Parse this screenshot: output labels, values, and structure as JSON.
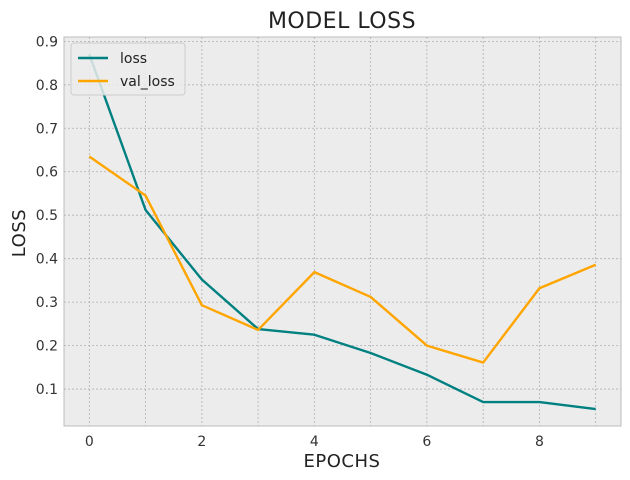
{
  "chart_data": {
    "type": "line",
    "title": "MODEL LOSS",
    "xlabel": "EPOCHS",
    "ylabel": "LOSS",
    "x": [
      0,
      1,
      2,
      3,
      4,
      5,
      6,
      7,
      8,
      9
    ],
    "xlim": [
      -0.45,
      9.45
    ],
    "ylim": [
      0.015,
      0.91
    ],
    "xticks": [
      0,
      2,
      4,
      6,
      8
    ],
    "yticks": [
      0.1,
      0.2,
      0.3,
      0.4,
      0.5,
      0.6,
      0.7,
      0.8,
      0.9
    ],
    "grid": true,
    "legend_position": "top-left",
    "series": [
      {
        "name": "loss",
        "color": "#008080",
        "values": [
          0.87,
          0.512,
          0.352,
          0.238,
          0.225,
          0.183,
          0.133,
          0.07,
          0.07,
          0.054
        ]
      },
      {
        "name": "val_loss",
        "color": "#FFA500",
        "values": [
          0.635,
          0.545,
          0.293,
          0.236,
          0.369,
          0.312,
          0.2,
          0.161,
          0.332,
          0.386
        ]
      }
    ]
  }
}
